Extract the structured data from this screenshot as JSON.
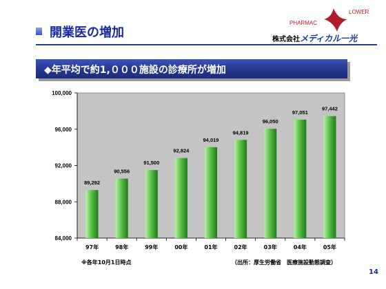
{
  "header": {
    "title": "開業医の増加",
    "brand": {
      "logo_text_top": "LOWER",
      "logo_text_left": "PHARMAC",
      "company_prefix": "株式会社",
      "company_name": "メディカル一光"
    }
  },
  "banner": {
    "text": "◆年平均で約1,０００施設の診療所が増加"
  },
  "chart_data": {
    "type": "bar",
    "categories": [
      "97年",
      "98年",
      "99年",
      "00年",
      "01年",
      "02年",
      "03年",
      "04年",
      "05年"
    ],
    "values": [
      89292,
      90556,
      91500,
      92824,
      94019,
      94819,
      96050,
      97051,
      97442
    ],
    "data_labels": [
      "89,292",
      "90,556",
      "91,500",
      "92,824",
      "94,019",
      "94,819",
      "96,050",
      "97,051",
      "97,442"
    ],
    "title": "",
    "xlabel": "",
    "ylabel": "",
    "ylim": [
      84000,
      100000
    ],
    "yticks": [
      84000,
      88000,
      92000,
      96000,
      100000
    ],
    "ytick_labels": [
      "84,000",
      "88,000",
      "92,000",
      "96,000",
      "100,000"
    ],
    "grid": false,
    "legend": "none",
    "colors": {
      "plot_background": "#c4c4c4",
      "bar_light": "#b8f0a8",
      "bar_mid": "#5cc048",
      "bar_dark": "#1e7a18"
    }
  },
  "footnotes": {
    "left": "※各年10月1日時点",
    "right": "（出所：厚生労働省　医療施設動態調査）"
  },
  "page_number": "14",
  "colors": {
    "title": "#1a2a9a",
    "banner": "#24378f",
    "logo_red": "#b01c2c"
  }
}
